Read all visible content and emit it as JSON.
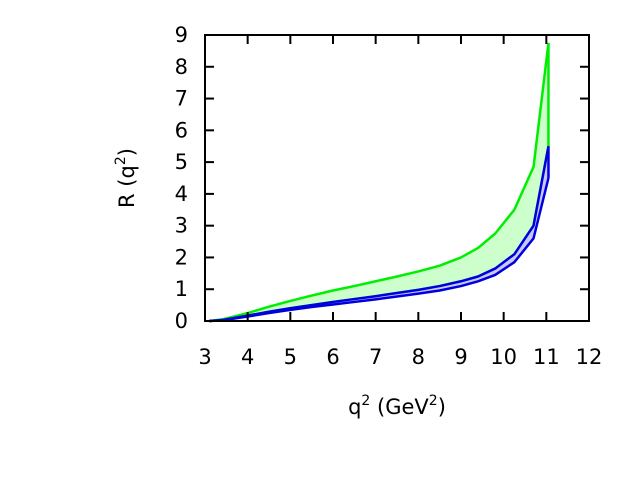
{
  "chart_data": {
    "type": "area",
    "xlabel": {
      "base": "q",
      "base_sup": "2",
      "unit_open": " (GeV",
      "unit_sup": "2",
      "unit_close": ")"
    },
    "ylabel": {
      "base": "R (q",
      "base_sup": "2",
      "close": ")"
    },
    "xlim": [
      3,
      12
    ],
    "ylim": [
      0,
      9
    ],
    "xticks": [
      "3",
      "4",
      "5",
      "6",
      "7",
      "8",
      "9",
      "10",
      "11",
      "12"
    ],
    "yticks": [
      "0",
      "1",
      "2",
      "3",
      "4",
      "5",
      "6",
      "7",
      "8",
      "9"
    ],
    "grid": false,
    "bands": [
      {
        "color": "#00ee00",
        "fill": "#ccffcc",
        "x": [
          3.1,
          3.4,
          4.0,
          4.5,
          5.0,
          5.5,
          6.0,
          6.5,
          7.0,
          7.5,
          8.0,
          8.5,
          9.0,
          9.4,
          9.8,
          10.25,
          10.7,
          11.05
        ],
        "upper": [
          0.0,
          0.05,
          0.25,
          0.45,
          0.63,
          0.8,
          0.96,
          1.1,
          1.25,
          1.4,
          1.56,
          1.74,
          2.0,
          2.3,
          2.75,
          3.5,
          4.85,
          8.75
        ],
        "lower": [
          0.0,
          0.03,
          0.17,
          0.29,
          0.4,
          0.5,
          0.6,
          0.69,
          0.78,
          0.88,
          0.98,
          1.1,
          1.25,
          1.4,
          1.65,
          2.1,
          3.0,
          5.5
        ]
      },
      {
        "color": "#0000dd",
        "fill": "#c8c8ff",
        "x": [
          3.1,
          3.4,
          4.0,
          4.5,
          5.0,
          5.5,
          6.0,
          6.5,
          7.0,
          7.5,
          8.0,
          8.5,
          9.0,
          9.4,
          9.8,
          10.25,
          10.7,
          11.05
        ],
        "upper": [
          0.0,
          0.03,
          0.17,
          0.29,
          0.4,
          0.5,
          0.6,
          0.69,
          0.78,
          0.88,
          0.98,
          1.1,
          1.25,
          1.4,
          1.65,
          2.1,
          3.0,
          5.5
        ],
        "lower": [
          0.0,
          0.02,
          0.14,
          0.25,
          0.35,
          0.44,
          0.52,
          0.6,
          0.68,
          0.77,
          0.86,
          0.96,
          1.1,
          1.25,
          1.45,
          1.85,
          2.6,
          4.5
        ]
      }
    ]
  }
}
